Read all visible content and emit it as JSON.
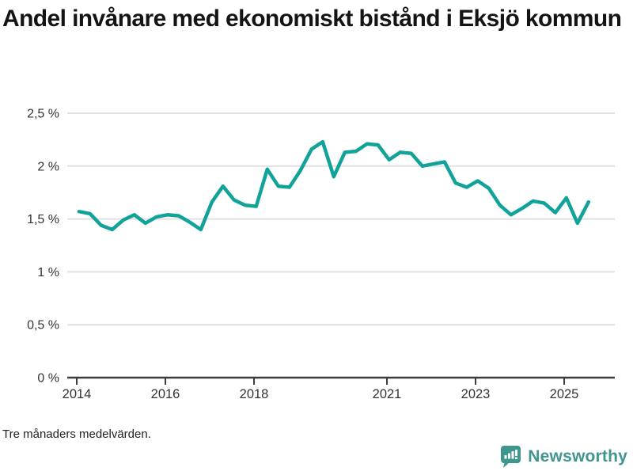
{
  "header": {
    "title": "Andel invånare med ekonomiskt bistånd i Eksjö kommun"
  },
  "footer": {
    "note": "Tre månaders medelvärden."
  },
  "branding": {
    "name": "Newsworthy",
    "icon": "bar-chart-speech-bubble-icon",
    "color": "#3f968e"
  },
  "colors": {
    "line": "#11a29a",
    "grid": "#e1e1e1",
    "axis": "#3d3d3d",
    "tick_text": "#333333",
    "title_text": "#141414"
  },
  "chart_data": {
    "type": "line",
    "title": "Andel invånare med ekonomiskt bistånd i Eksjö kommun",
    "subtitle": "Tre månaders medelvärden.",
    "xlabel": "",
    "ylabel": "",
    "unit": "%",
    "ylim": [
      0,
      2.5
    ],
    "xlim": [
      2013.8,
      2026.1
    ],
    "grid": "horizontal",
    "legend": "none",
    "yticks": [
      {
        "value": 0,
        "label": "0 %"
      },
      {
        "value": 0.5,
        "label": "0,5 %"
      },
      {
        "value": 1,
        "label": "1 %"
      },
      {
        "value": 1.5,
        "label": "1,5 %"
      },
      {
        "value": 2,
        "label": "2 %"
      },
      {
        "value": 2.5,
        "label": "2,5 %"
      }
    ],
    "xticks": [
      {
        "value": 2014,
        "label": "2014"
      },
      {
        "value": 2016,
        "label": "2016"
      },
      {
        "value": 2018,
        "label": "2018"
      },
      {
        "value": 2021,
        "label": "2021"
      },
      {
        "value": 2023,
        "label": "2023"
      },
      {
        "value": 2025,
        "label": "2025"
      }
    ],
    "series": [
      {
        "name": "Andel invånare med ekonomiskt bistånd",
        "x": [
          2014.05,
          2014.3,
          2014.55,
          2014.8,
          2015.05,
          2015.3,
          2015.55,
          2015.8,
          2016.05,
          2016.3,
          2016.55,
          2016.8,
          2017.05,
          2017.3,
          2017.55,
          2017.8,
          2018.05,
          2018.3,
          2018.55,
          2018.8,
          2019.05,
          2019.3,
          2019.55,
          2019.8,
          2020.05,
          2020.3,
          2020.55,
          2020.8,
          2021.05,
          2021.3,
          2021.55,
          2021.8,
          2022.05,
          2022.3,
          2022.55,
          2022.8,
          2023.05,
          2023.3,
          2023.55,
          2023.8,
          2024.05,
          2024.3,
          2024.55,
          2024.8,
          2025.05,
          2025.3,
          2025.55
        ],
        "values": [
          1.57,
          1.55,
          1.44,
          1.4,
          1.49,
          1.54,
          1.46,
          1.52,
          1.54,
          1.53,
          1.47,
          1.4,
          1.66,
          1.81,
          1.68,
          1.63,
          1.62,
          1.97,
          1.81,
          1.8,
          1.96,
          2.16,
          2.23,
          1.9,
          2.13,
          2.14,
          2.21,
          2.2,
          2.06,
          2.13,
          2.12,
          2.0,
          2.02,
          2.04,
          1.84,
          1.8,
          1.86,
          1.79,
          1.63,
          1.54,
          1.6,
          1.67,
          1.65,
          1.56,
          1.7,
          1.46,
          1.66
        ]
      }
    ]
  }
}
